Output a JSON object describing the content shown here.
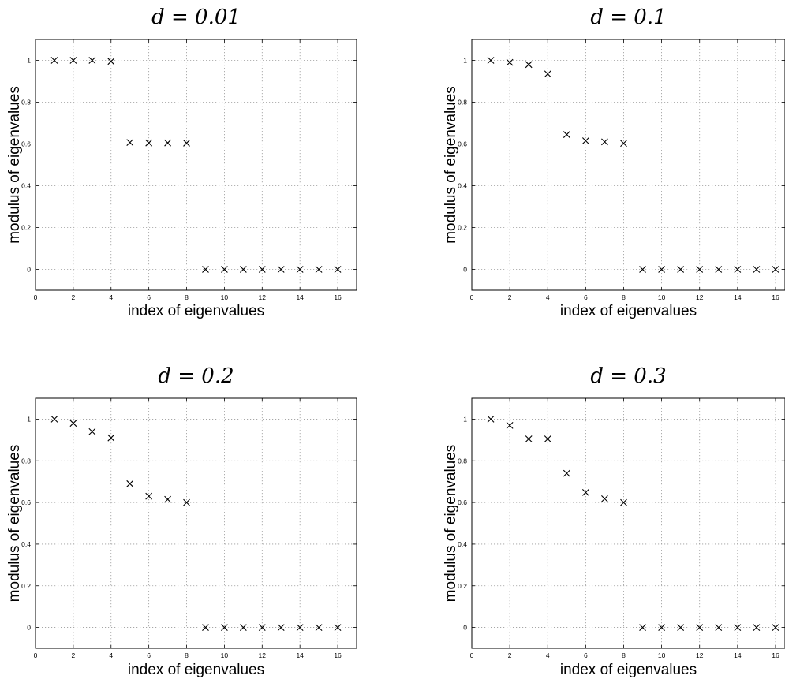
{
  "chart_data": [
    {
      "type": "scatter",
      "title": "d = 0.01",
      "xlabel": "index of eigenvalues",
      "ylabel": "modulus of eigenvalues",
      "xlim": [
        0,
        17
      ],
      "ylim": [
        -0.1,
        1.1
      ],
      "xticks": [
        0,
        2,
        4,
        6,
        8,
        10,
        12,
        14,
        16
      ],
      "yticks": [
        0,
        0.2,
        0.4,
        0.6,
        0.8,
        1
      ],
      "grid": true,
      "marker": "x",
      "x": [
        1,
        2,
        3,
        4,
        5,
        6,
        7,
        8,
        9,
        10,
        11,
        12,
        13,
        14,
        15,
        16
      ],
      "y": [
        1.0,
        1.0,
        1.0,
        0.995,
        0.607,
        0.605,
        0.605,
        0.604,
        0,
        0,
        0,
        0,
        0,
        0,
        0,
        0
      ]
    },
    {
      "type": "scatter",
      "title": "d = 0.1",
      "xlabel": "index of eigenvalues",
      "ylabel": "modulus of eigenvalues",
      "xlim": [
        0,
        16.5
      ],
      "ylim": [
        -0.1,
        1.1
      ],
      "xticks": [
        0,
        2,
        4,
        6,
        8,
        10,
        12,
        14,
        16
      ],
      "yticks": [
        0,
        0.2,
        0.4,
        0.6,
        0.8,
        1
      ],
      "grid": true,
      "marker": "x",
      "x": [
        1,
        2,
        3,
        4,
        5,
        6,
        7,
        8,
        9,
        10,
        11,
        12,
        13,
        14,
        15,
        16
      ],
      "y": [
        1.0,
        0.99,
        0.98,
        0.935,
        0.645,
        0.615,
        0.61,
        0.603,
        0,
        0,
        0,
        0,
        0,
        0,
        0,
        0
      ]
    },
    {
      "type": "scatter",
      "title": "d = 0.2",
      "xlabel": "index of eigenvalues",
      "ylabel": "modulus of eigenvalues",
      "xlim": [
        0,
        17
      ],
      "ylim": [
        -0.1,
        1.1
      ],
      "xticks": [
        0,
        2,
        4,
        6,
        8,
        10,
        12,
        14,
        16
      ],
      "yticks": [
        0,
        0.2,
        0.4,
        0.6,
        0.8,
        1
      ],
      "grid": true,
      "marker": "x",
      "x": [
        1,
        2,
        3,
        4,
        5,
        6,
        7,
        8,
        9,
        10,
        11,
        12,
        13,
        14,
        15,
        16
      ],
      "y": [
        1.0,
        0.98,
        0.94,
        0.91,
        0.69,
        0.63,
        0.615,
        0.6,
        0,
        0,
        0,
        0,
        0,
        0,
        0,
        0
      ]
    },
    {
      "type": "scatter",
      "title": "d = 0.3",
      "xlabel": "index of eigenvalues",
      "ylabel": "modulus of eigenvalues",
      "xlim": [
        0,
        16.5
      ],
      "ylim": [
        -0.1,
        1.1
      ],
      "xticks": [
        0,
        2,
        4,
        6,
        8,
        10,
        12,
        14,
        16
      ],
      "yticks": [
        0,
        0.2,
        0.4,
        0.6,
        0.8,
        1
      ],
      "grid": true,
      "marker": "x",
      "x": [
        1,
        2,
        3,
        4,
        5,
        6,
        7,
        8,
        9,
        10,
        11,
        12,
        13,
        14,
        15,
        16
      ],
      "y": [
        1.0,
        0.97,
        0.905,
        0.905,
        0.74,
        0.648,
        0.618,
        0.6,
        0,
        0,
        0,
        0,
        0,
        0,
        0,
        0
      ]
    }
  ]
}
